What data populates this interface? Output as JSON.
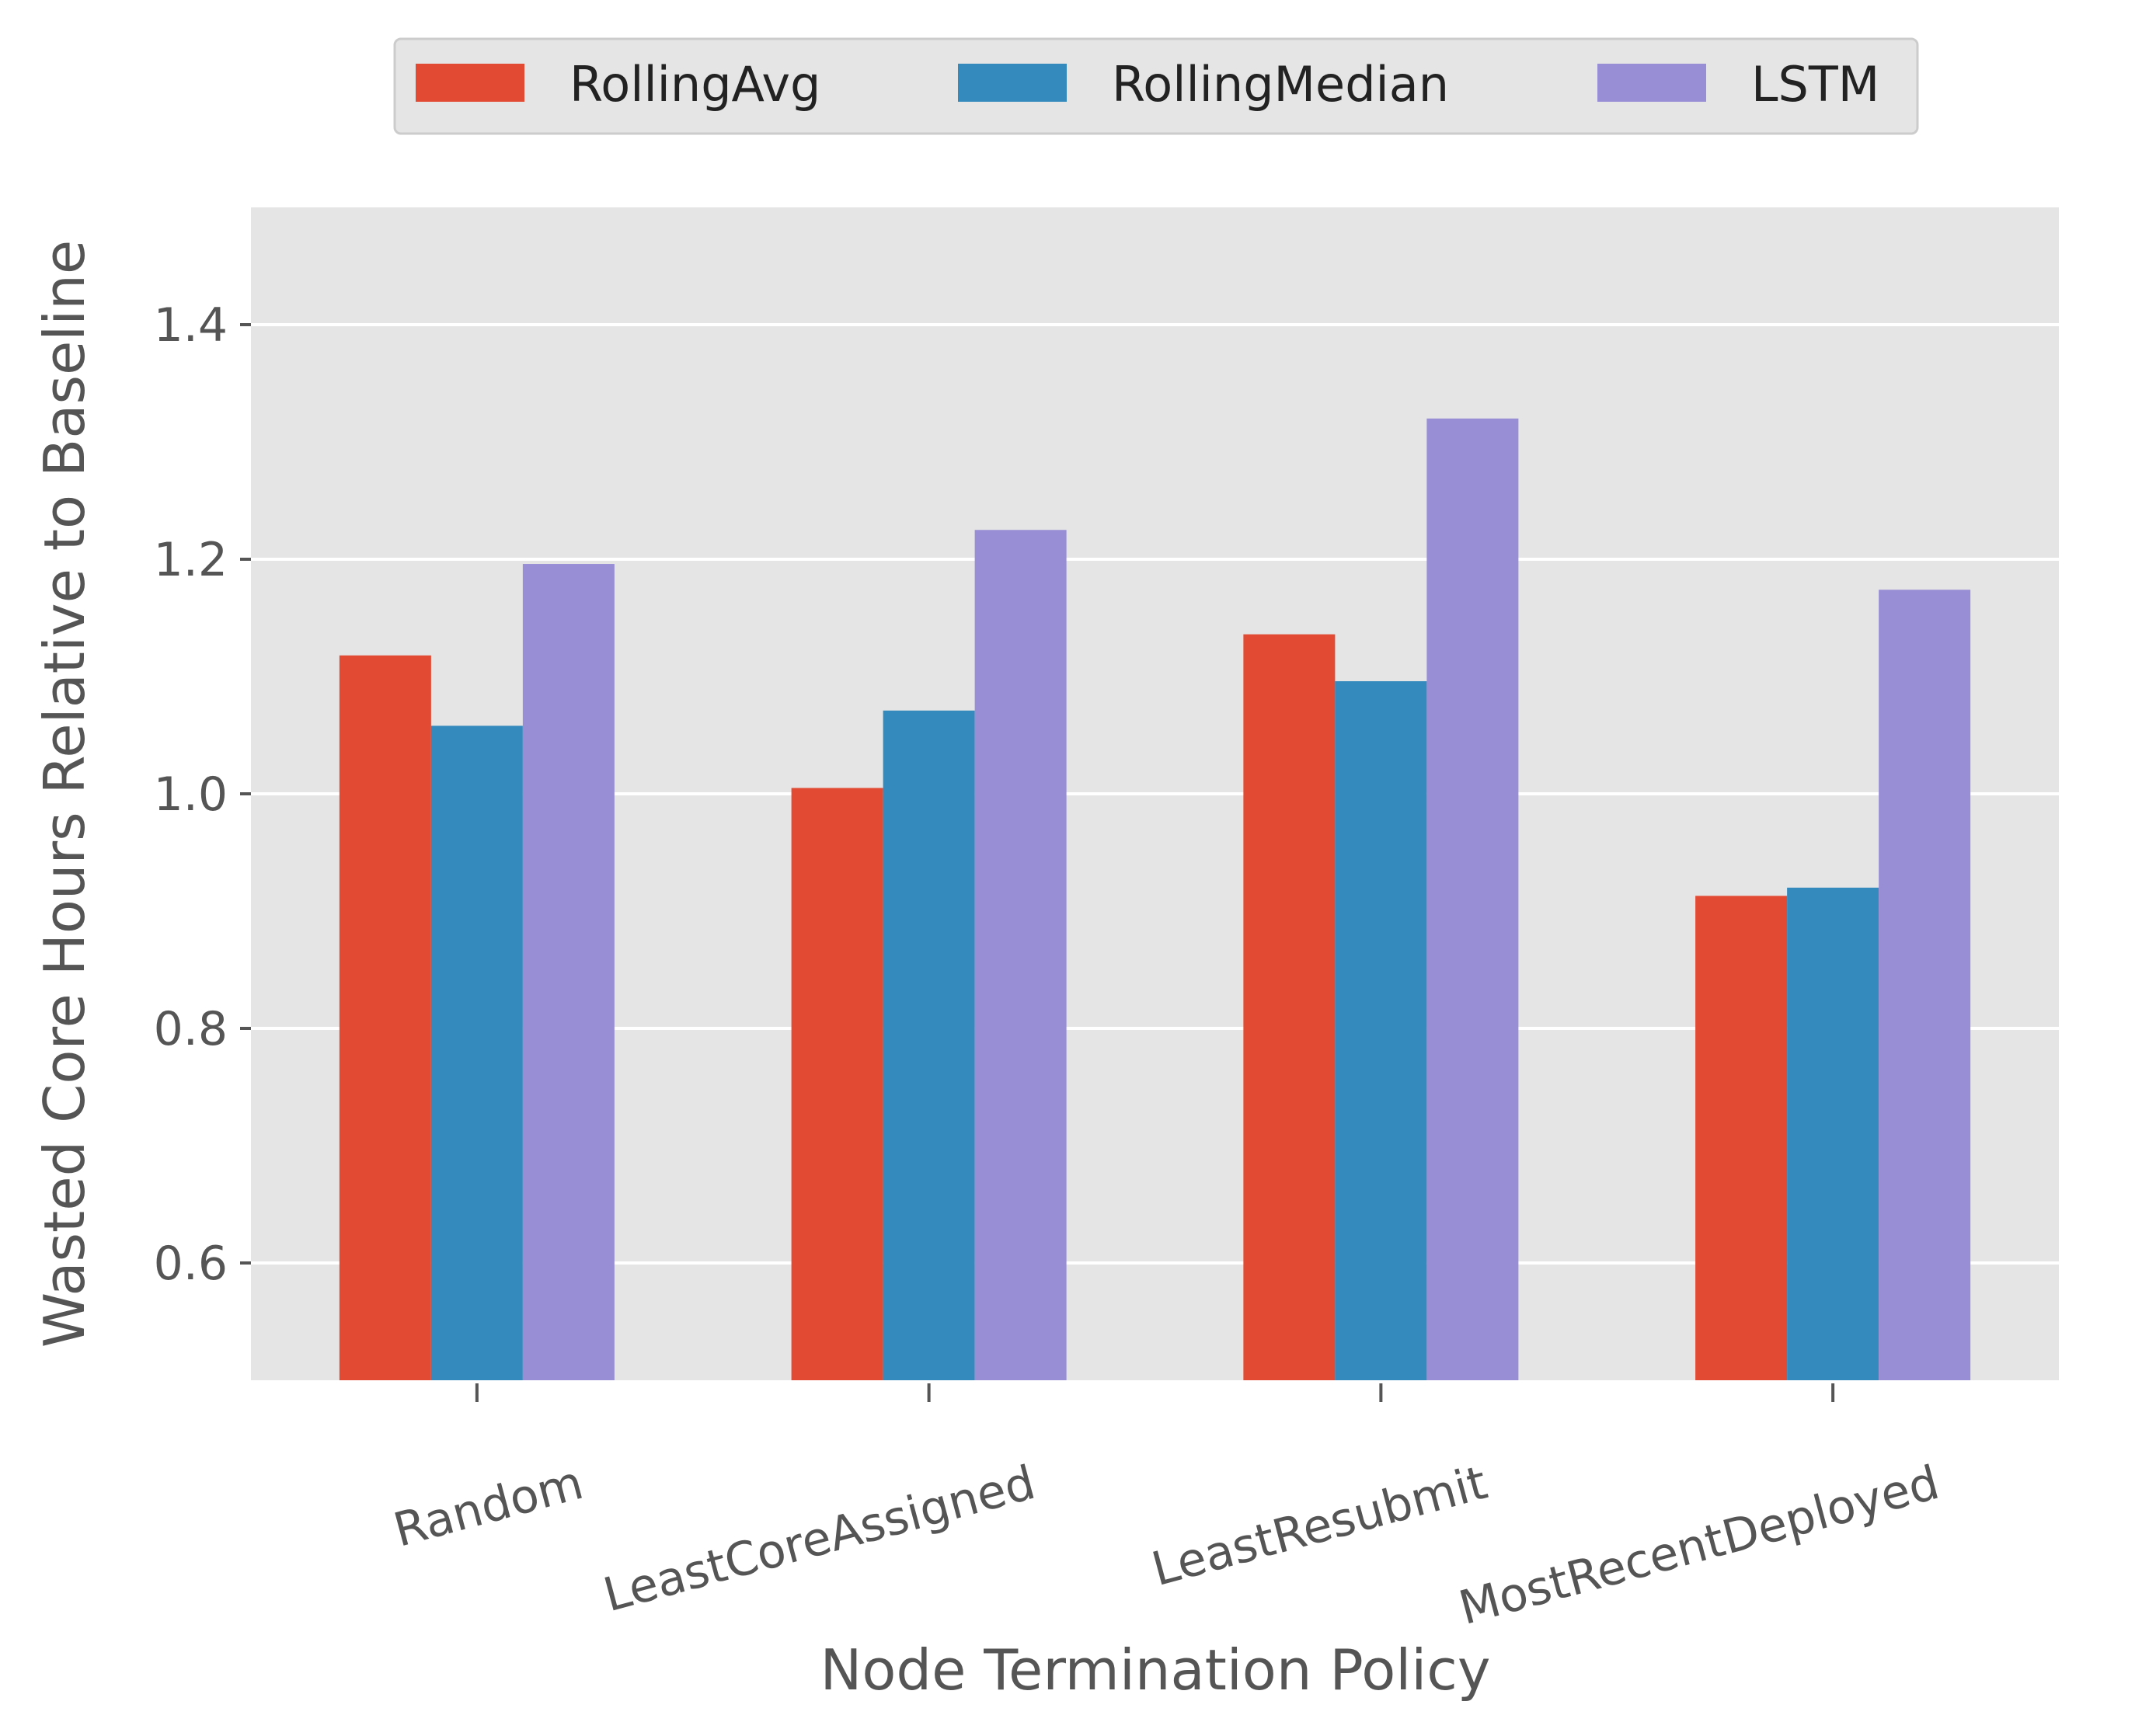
{
  "chart_data": {
    "type": "bar",
    "xlabel": "Node Termination Policy",
    "ylabel": "Wasted Core Hours Relative to Baseline",
    "categories": [
      "Random",
      "LeastCoreAssigned",
      "LeastResubmit",
      "MostRecentDeployed"
    ],
    "series": [
      {
        "name": "RollingAvg",
        "color": "#E24A33",
        "values": [
          1.118,
          1.005,
          1.136,
          0.913
        ]
      },
      {
        "name": "RollingMedian",
        "color": "#348ABD",
        "values": [
          1.058,
          1.071,
          1.096,
          0.92
        ]
      },
      {
        "name": "LSTM",
        "color": "#988ED5",
        "values": [
          1.196,
          1.225,
          1.32,
          1.174
        ]
      }
    ],
    "ylim": [
      0.5,
      1.5
    ],
    "yticks": [
      0.6,
      0.8,
      1.0,
      1.2,
      1.4
    ],
    "ytick_labels": [
      "0.6",
      "0.8",
      "1.0",
      "1.2",
      "1.4"
    ],
    "grid": true,
    "legend_position": "top-center",
    "background_color": "#E5E5E5"
  }
}
